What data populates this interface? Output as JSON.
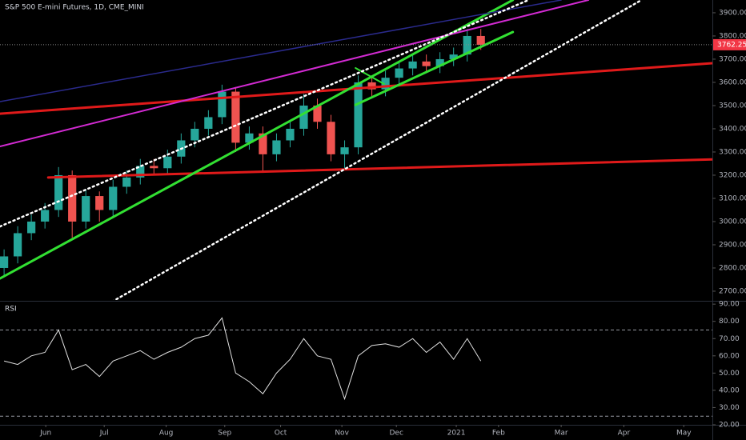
{
  "chart_data": [
    {
      "type": "candlestick",
      "title": "S&P 500 E-mini Futures, 1D, CME_MINI",
      "categories": [
        null,
        null,
        null,
        null,
        null,
        null,
        null,
        null,
        null,
        null,
        null,
        null,
        null,
        null,
        null,
        null,
        null,
        null,
        null,
        null,
        null,
        null,
        null,
        null,
        null,
        null,
        null,
        null,
        null,
        null,
        null,
        null,
        null,
        null,
        null,
        null
      ],
      "open": [
        2800,
        2850,
        2950,
        3000,
        3050,
        3200,
        3000,
        3110,
        3050,
        3150,
        3190,
        3240,
        3230,
        3280,
        3350,
        3400,
        3450,
        3560,
        3340,
        3380,
        3290,
        3350,
        3400,
        3500,
        3430,
        3290,
        3320,
        3600,
        3570,
        3620,
        3660,
        3690,
        3670,
        3700,
        3720,
        3800
      ],
      "high": [
        2880,
        2980,
        3030,
        3080,
        3235,
        3220,
        3140,
        3130,
        3180,
        3220,
        3270,
        3270,
        3310,
        3380,
        3430,
        3480,
        3590,
        3580,
        3410,
        3410,
        3380,
        3430,
        3550,
        3530,
        3460,
        3350,
        3630,
        3630,
        3650,
        3690,
        3720,
        3720,
        3730,
        3750,
        3830,
        3830
      ],
      "low": [
        2760,
        2820,
        2920,
        2970,
        3020,
        2930,
        2970,
        3000,
        3020,
        3120,
        3160,
        3200,
        3200,
        3250,
        3320,
        3370,
        3420,
        3300,
        3310,
        3210,
        3260,
        3320,
        3370,
        3400,
        3260,
        3220,
        3290,
        3540,
        3540,
        3590,
        3630,
        3640,
        3640,
        3670,
        3690,
        3740
      ],
      "close": [
        2850,
        2950,
        3000,
        3050,
        3200,
        3000,
        3110,
        3050,
        3150,
        3190,
        3240,
        3230,
        3280,
        3350,
        3400,
        3450,
        3560,
        3340,
        3380,
        3290,
        3350,
        3400,
        3500,
        3430,
        3290,
        3320,
        3600,
        3570,
        3620,
        3660,
        3690,
        3670,
        3700,
        3720,
        3800,
        3762
      ],
      "up_color": "#26a69a",
      "down_color": "#ef5350",
      "last_price": 3762.25,
      "last_price_color": "#f23645",
      "xlim": [
        -0.3,
        52
      ],
      "xticks": [
        {
          "value": 3.06,
          "label": "Jun"
        },
        {
          "value": 7.35,
          "label": "Jul"
        },
        {
          "value": 11.9,
          "label": "Aug"
        },
        {
          "value": 16.2,
          "label": "Sep"
        },
        {
          "value": 20.3,
          "label": "Oct"
        },
        {
          "value": 24.8,
          "label": "Nov"
        },
        {
          "value": 28.8,
          "label": "Dec"
        },
        {
          "value": 33.2,
          "label": "2021"
        },
        {
          "value": 36.3,
          "label": "Feb"
        },
        {
          "value": 40.9,
          "label": "Mar"
        },
        {
          "value": 45.5,
          "label": "Apr"
        },
        {
          "value": 49.9,
          "label": "May"
        }
      ],
      "ylim": [
        2662,
        3955
      ],
      "yticks": [
        {
          "value": 2700,
          "label": "2700.00"
        },
        {
          "value": 2800,
          "label": "2800.00"
        },
        {
          "value": 2900,
          "label": "2900.00"
        },
        {
          "value": 3000,
          "label": "3000.00"
        },
        {
          "value": 3100,
          "label": "3100.00"
        },
        {
          "value": 3200,
          "label": "3200.00"
        },
        {
          "value": 3300,
          "label": "3300.00"
        },
        {
          "value": 3400,
          "label": "3400.00"
        },
        {
          "value": 3500,
          "label": "3500.00"
        },
        {
          "value": 3600,
          "label": "3600.00"
        },
        {
          "value": 3700,
          "label": "3700.00"
        },
        {
          "value": 3800,
          "label": "3800.00"
        },
        {
          "value": 3900,
          "label": "3900.00"
        }
      ],
      "trendlines": [
        {
          "color": "#e01a1a",
          "style": "solid",
          "width": 3,
          "points": [
            [
              -0.3,
              3465
            ],
            [
              54.5,
              3693
            ]
          ]
        },
        {
          "color": "#e01a1a",
          "style": "solid",
          "width": 3,
          "points": [
            [
              3.24,
              3190
            ],
            [
              54.5,
              3272
            ]
          ]
        },
        {
          "color": "#32e032",
          "style": "solid",
          "width": 3,
          "points": [
            [
              -0.3,
              2755
            ],
            [
              37.35,
              3955
            ]
          ]
        },
        {
          "color": "#32e032",
          "style": "solid",
          "width": 3,
          "points": [
            [
              25.8,
              3503
            ],
            [
              37.35,
              3817
            ]
          ]
        },
        {
          "color": "#32e032",
          "style": "solid",
          "width": 2,
          "points": [
            [
              25.8,
              3662
            ],
            [
              27.9,
              3593
            ]
          ]
        },
        {
          "color": "#d22ad2",
          "style": "solid",
          "width": 2,
          "points": [
            [
              -0.3,
              3324
            ],
            [
              42.9,
              3955
            ]
          ]
        },
        {
          "color": "#2a2a8c",
          "style": "solid",
          "width": 1.5,
          "points": [
            [
              -0.3,
              3517
            ],
            [
              40.9,
              3955
            ]
          ]
        },
        {
          "color": "#ffffff",
          "style": "dotted",
          "width": 2.5,
          "points": [
            [
              -0.3,
              2979
            ],
            [
              38.5,
              3955
            ]
          ]
        },
        {
          "color": "#ffffff",
          "style": "dotted",
          "width": 2.5,
          "points": [
            [
              7.94,
              2655
            ],
            [
              46.8,
              3955
            ]
          ]
        }
      ]
    },
    {
      "type": "line",
      "title": "RSI",
      "color": "#e0e0e0",
      "values": [
        57,
        55,
        60,
        62,
        75,
        52,
        55,
        48,
        57,
        60,
        63,
        58,
        62,
        65,
        70,
        72,
        82,
        50,
        45,
        38,
        50,
        58,
        70,
        60,
        58,
        35,
        60,
        66,
        67,
        65,
        70,
        62,
        68,
        58,
        70,
        57
      ],
      "bands": [
        75,
        25
      ],
      "ylim": [
        20,
        91
      ],
      "yticks": [
        {
          "value": 20,
          "label": "20.00"
        },
        {
          "value": 30,
          "label": "30.00"
        },
        {
          "value": 40,
          "label": "40.00"
        },
        {
          "value": 50,
          "label": "50.00"
        },
        {
          "value": 60,
          "label": "60.00"
        },
        {
          "value": 70,
          "label": "70.00"
        },
        {
          "value": 80,
          "label": "80.00"
        },
        {
          "value": 90,
          "label": "90.00"
        }
      ]
    }
  ]
}
